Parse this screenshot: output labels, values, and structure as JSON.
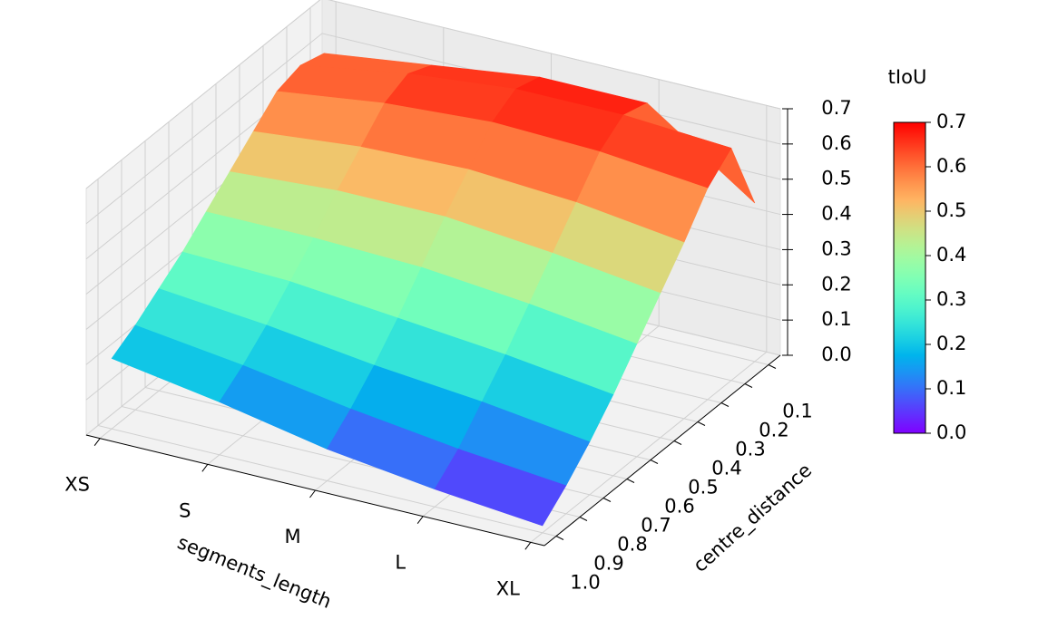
{
  "chart_data": {
    "type": "surface",
    "x_label": "segments_length",
    "y_label": "centre_distance",
    "categories": [
      "XS",
      "S",
      "M",
      "L",
      "XL"
    ],
    "y": [
      0.1,
      0.2,
      0.3,
      0.4,
      0.5,
      0.6,
      0.7,
      0.8,
      0.9,
      {
        "value": 1,
        "label": "1.0"
      }
    ],
    "ylim": [
      1.05,
      0.05
    ],
    "z": [
      [
        0.58,
        0.6,
        0.58,
        0.52,
        0.46,
        0.4,
        0.34,
        0.29,
        0.24,
        0.2
      ],
      [
        0.62,
        0.65,
        0.62,
        0.55,
        0.48,
        0.4,
        0.33,
        0.26,
        0.2,
        0.15
      ],
      [
        0.66,
        0.68,
        0.64,
        0.56,
        0.48,
        0.39,
        0.3,
        0.22,
        0.15,
        0.09
      ],
      [
        0.66,
        0.68,
        0.63,
        0.54,
        0.45,
        0.36,
        0.27,
        0.19,
        0.11,
        0.05
      ],
      [
        0.45,
        0.66,
        0.6,
        0.5,
        0.41,
        0.32,
        0.23,
        0.15,
        0.08,
        0.02
      ]
    ],
    "zlim": [
      0,
      0.7
    ],
    "zticks": [
      {
        "value": 0,
        "label": "0.0"
      },
      0.1,
      0.2,
      0.3,
      0.4,
      0.5,
      0.6,
      0.7
    ],
    "colormap": "rainbow",
    "grid": true,
    "colorbar": {
      "label": "tIoU",
      "lim": [
        0,
        0.7
      ],
      "ticks": [
        {
          "value": 0,
          "label": "0.0"
        },
        0.1,
        0.2,
        0.3,
        0.4,
        0.5,
        0.6,
        0.7
      ]
    }
  }
}
